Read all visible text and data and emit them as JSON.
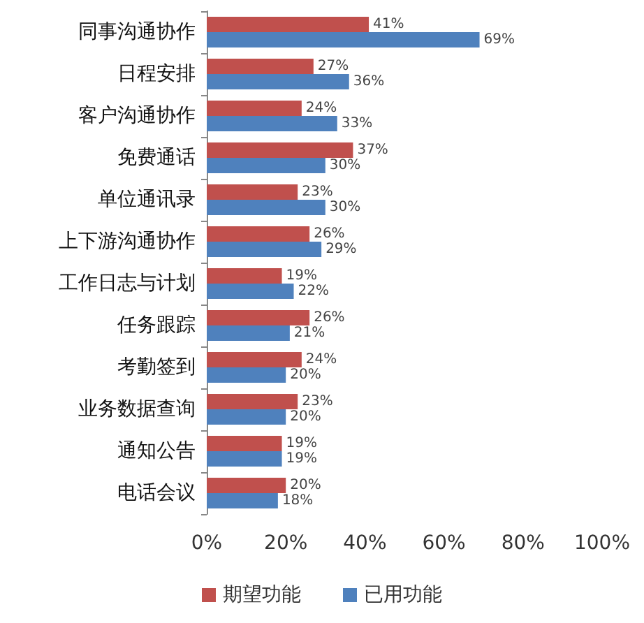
{
  "chart_data": {
    "type": "bar",
    "orientation": "horizontal",
    "categories": [
      "同事沟通协作",
      "日程安排",
      "客户沟通协作",
      "免费通话",
      "单位通讯录",
      "上下游沟通协作",
      "工作日志与计划",
      "任务跟踪",
      "考勤签到",
      "业务数据查询",
      "通知公告",
      "电话会议"
    ],
    "series": [
      {
        "name": "期望功能",
        "color": "#c0504d",
        "values": [
          41,
          27,
          24,
          37,
          23,
          26,
          19,
          26,
          24,
          23,
          19,
          20
        ],
        "value_labels": [
          "41%",
          "27%",
          "24%",
          "37%",
          "23%",
          "26%",
          "19%",
          "26%",
          "24%",
          "23%",
          "19%",
          "20%"
        ]
      },
      {
        "name": "已用功能",
        "color": "#4f81bd",
        "values": [
          69,
          36,
          33,
          30,
          30,
          29,
          22,
          21,
          20,
          20,
          19,
          18
        ],
        "value_labels": [
          "69%",
          "36%",
          "33%",
          "30%",
          "30%",
          "29%",
          "22%",
          "21%",
          "20%",
          "20%",
          "19%",
          "18%"
        ]
      }
    ],
    "xlim": [
      0,
      100
    ],
    "xticks": [
      {
        "value": 0,
        "label": "0%"
      },
      {
        "value": 20,
        "label": "20%"
      },
      {
        "value": 40,
        "label": "40%"
      },
      {
        "value": 60,
        "label": "60%"
      },
      {
        "value": 80,
        "label": "80%"
      },
      {
        "value": 100,
        "label": "100%"
      }
    ],
    "grid": false,
    "legend": "bottom"
  }
}
